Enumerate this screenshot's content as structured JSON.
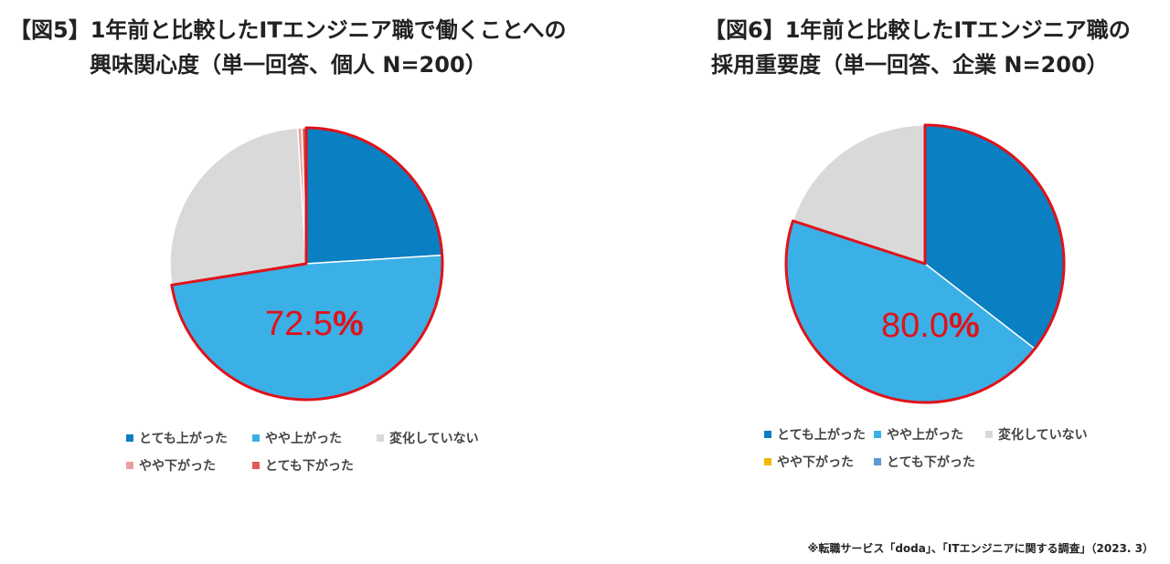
{
  "chart_data": [
    {
      "type": "pie",
      "title_line1": "【図5】1年前と比較したITエンジニア職で働くことへの",
      "title_line2": "興味関心度（単一回答、個人 N=200）",
      "categories": [
        "とても上がった",
        "やや上がった",
        "変化していない",
        "やや下がった",
        "とても下がった"
      ],
      "values": [
        24.0,
        48.5,
        26.5,
        0.5,
        0.5
      ],
      "colors": [
        "#0a7fc2",
        "#3bb0e6",
        "#d9d9d9",
        "#e8a0a0",
        "#e05a5a"
      ],
      "highlight_total": "72.5",
      "highlight_unit": "%",
      "highlight_color": "#e0121a"
    },
    {
      "type": "pie",
      "title_line1": "【図6】1年前と比較したITエンジニア職の",
      "title_line2": "採用重要度（単一回答、企業 N=200）",
      "categories": [
        "とても上がった",
        "やや上がった",
        "変化していない",
        "やや下がった",
        "とても下がった"
      ],
      "values": [
        35.5,
        44.5,
        20.0,
        0,
        0
      ],
      "colors": [
        "#0a7fc2",
        "#3bb0e6",
        "#d9d9d9",
        "#f2b800",
        "#5b9bd5"
      ],
      "highlight_total": "80.0",
      "highlight_unit": "%",
      "highlight_color": "#e0121a"
    }
  ],
  "source_note": "※転職サービス「doda」、「ITエンジニアに関する調査」（2023. 3）"
}
